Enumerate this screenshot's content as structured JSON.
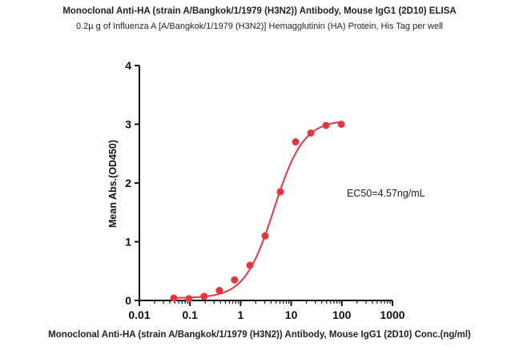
{
  "chart_data": {
    "type": "scatter",
    "title": "Monoclonal Anti-HA (strain A/Bangkok/1/1979 (H3N2)) Antibody, Mouse IgG1 (2D10) ELISA",
    "subtitle": "0.2µ g of Influenza A [A/Bangkok/1/1979 (H3N2)] Hemagglutinin (HA) Protein, His Tag per well",
    "xlabel": "Monoclonal Anti-HA (strain A/Bangkok/1/1979 (H3N2)) Antibody, Mouse IgG1 (2D10) Conc.(ng/ml)",
    "ylabel": "Mean Abs.(OD450)",
    "x_scale": "log",
    "xlim": [
      0.01,
      1000
    ],
    "ylim": [
      0,
      4
    ],
    "x_ticks": [
      "0.01",
      "0.1",
      "1",
      "10",
      "100",
      "1000"
    ],
    "y_ticks": [
      "0",
      "1",
      "2",
      "3",
      "4"
    ],
    "annotation": "EC50=4.57ng/mL",
    "grid": false,
    "color": "#e8343f",
    "series": [
      {
        "x": [
          0.048,
          0.095,
          0.19,
          0.38,
          0.76,
          1.53,
          3.05,
          6.1,
          12.2,
          24.4,
          48.8,
          97.7
        ],
        "y": [
          0.04,
          0.03,
          0.07,
          0.17,
          0.35,
          0.6,
          1.1,
          1.85,
          2.7,
          2.85,
          2.98,
          3.0
        ]
      }
    ],
    "fit": {
      "bottom": 0.04,
      "top": 3.07,
      "ec50": 4.57,
      "hill": 1.5
    }
  }
}
